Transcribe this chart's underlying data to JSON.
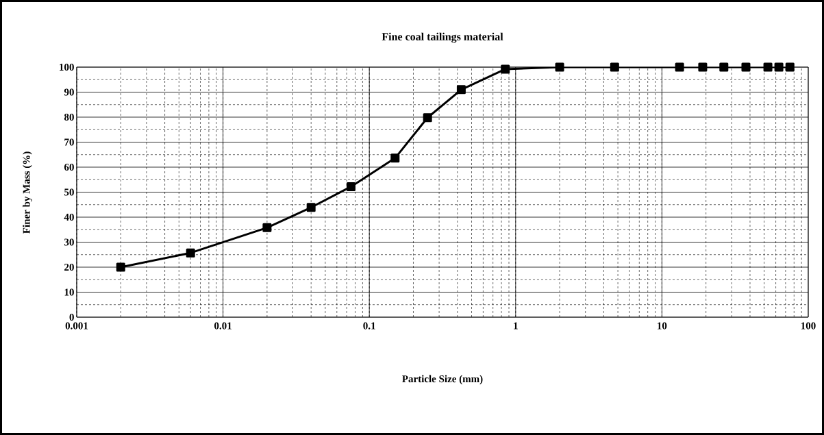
{
  "chart_data": {
    "type": "line",
    "title": "Fine coal tailings material",
    "xlabel": "Particle Size (mm)",
    "ylabel": "Finer by Mass (%)",
    "x": [
      0.002,
      0.006,
      0.02,
      0.04,
      0.075,
      0.15,
      0.25,
      0.425,
      0.85,
      2.0,
      4.75,
      13.2,
      19,
      26.5,
      37.5,
      53,
      63,
      75
    ],
    "series": [
      {
        "color": "#000000",
        "values": [
          20,
          25.7,
          35.8,
          43.9,
          52.2,
          63.6,
          79.8,
          91,
          99.2,
          100,
          100,
          100,
          100,
          100,
          100,
          100,
          100,
          100
        ]
      }
    ],
    "log": "x",
    "xlim": [
      0.001,
      100
    ],
    "xticks": [
      0.001,
      0.01,
      0.1,
      1,
      10,
      100
    ],
    "ylim": [
      0,
      100
    ],
    "yticks": [
      0,
      10,
      20,
      30,
      40,
      50,
      60,
      70,
      80,
      90,
      100
    ],
    "grid": true,
    "marker": "square",
    "line_style": "solid"
  }
}
